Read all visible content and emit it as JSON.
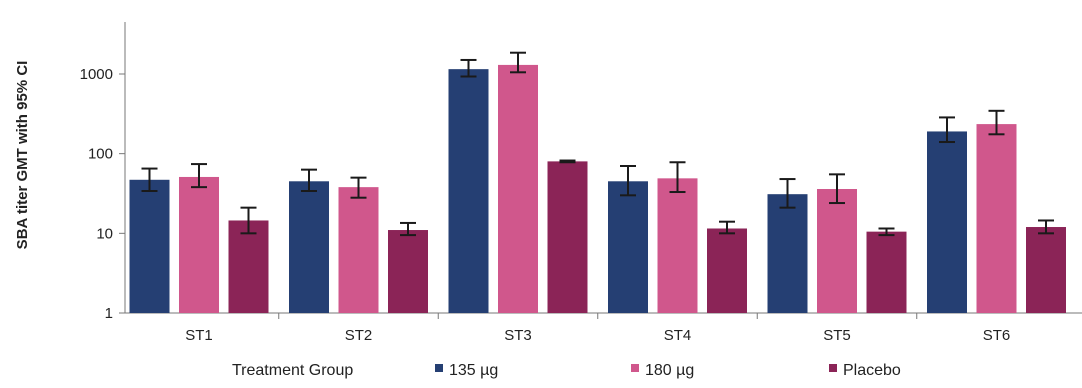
{
  "chart_data": {
    "type": "bar",
    "title": "",
    "ylabel": "SBA titer GMT with 95% CI",
    "xlabel": "Treatment Group",
    "y_scale": "log",
    "ylim": [
      1,
      5000
    ],
    "y_ticks": [
      1,
      10,
      100,
      1000
    ],
    "y_tick_labels": [
      "1",
      "10",
      "100",
      "1000"
    ],
    "grid": false,
    "legend_position": "bottom",
    "categories": [
      "ST1",
      "ST2",
      "ST3",
      "ST4",
      "ST5",
      "ST6"
    ],
    "series": [
      {
        "name": "135 µg",
        "color": "#253f73",
        "values": [
          47,
          45,
          1150,
          45,
          31,
          190
        ],
        "ci_low": [
          34,
          34,
          930,
          30,
          21,
          140
        ],
        "ci_high": [
          65,
          63,
          1500,
          70,
          48,
          285
        ]
      },
      {
        "name": "180 µg",
        "color": "#d0578c",
        "values": [
          51,
          38,
          1300,
          49,
          36,
          235
        ],
        "ci_low": [
          38,
          28,
          1050,
          33,
          24,
          175
        ],
        "ci_high": [
          74,
          50,
          1850,
          78,
          55,
          345
        ]
      },
      {
        "name": "Placebo",
        "color": "#8b2457",
        "values": [
          14.5,
          11,
          80,
          11.5,
          10.5,
          12
        ],
        "ci_low": [
          10,
          9.5,
          78,
          10,
          9.5,
          10
        ],
        "ci_high": [
          21,
          13.5,
          82,
          14,
          11.5,
          14.5
        ]
      }
    ]
  }
}
